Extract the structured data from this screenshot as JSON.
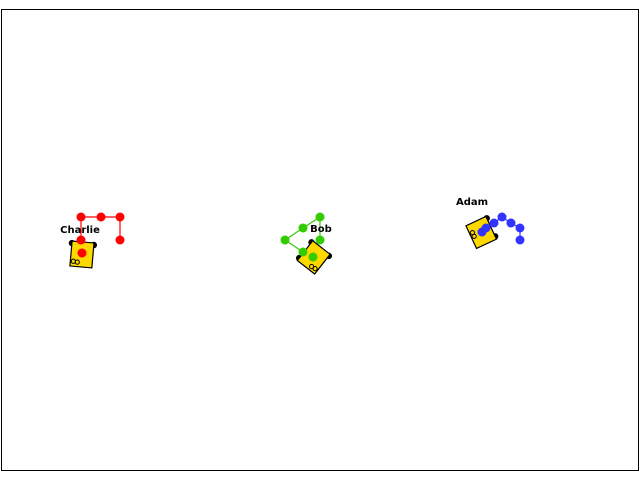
{
  "colors": {
    "background": "#ffffff",
    "border": "#000000",
    "car_body": "#ffd800",
    "wheel": "#000000",
    "charlie_trail": "#ff0000",
    "bob_trail": "#33cc00",
    "adam_trail": "#3333ff"
  },
  "agents": [
    {
      "id": "charlie",
      "name": "Charlie",
      "trail_color_key": "charlie_trail"
    },
    {
      "id": "bob",
      "name": "Bob",
      "trail_color_key": "bob_trail"
    },
    {
      "id": "adam",
      "name": "Adam",
      "trail_color_key": "adam_trail"
    }
  ]
}
